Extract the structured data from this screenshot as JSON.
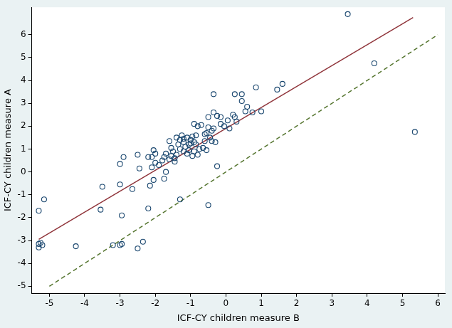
{
  "chart_data": {
    "type": "scatter",
    "x_label": "ICF-CY children measure B",
    "y_label": "ICF-CY children measure A",
    "xlim": [
      -5.5,
      6.2
    ],
    "ylim": [
      -5.3,
      7.2
    ],
    "xticks": [
      -5,
      -4,
      -3,
      -2,
      -1,
      0,
      1,
      2,
      3,
      4,
      5,
      6
    ],
    "yticks": [
      -5,
      -4,
      -3,
      -2,
      -1,
      0,
      1,
      2,
      3,
      4,
      5,
      6
    ],
    "grid": false,
    "series": [
      {
        "type": "scatter",
        "marker": "circle",
        "color": "#1a476f",
        "x": [
          3.45,
          4.2,
          5.35,
          1.6,
          1.45,
          0.85,
          1.0,
          0.75,
          0.45,
          0.45,
          0.25,
          0.2,
          0.25,
          0.05,
          -0.05,
          -0.15,
          0.55,
          0.6,
          0.3,
          -0.35,
          -0.35,
          -0.25,
          -0.15,
          -0.5,
          -0.5,
          -0.4,
          -0.55,
          -0.6,
          -0.7,
          -0.8,
          -0.3,
          -0.4,
          -0.55,
          -0.25,
          -0.5,
          -1.3,
          -0.9,
          -0.85,
          -0.95,
          -1.0,
          -1.1,
          -1.05,
          -1.15,
          -1.2,
          -1.25,
          -1.3,
          -1.4,
          -1.35,
          -1.3,
          -1.1,
          -1.2,
          -1.05,
          -0.9,
          -0.95,
          -1.5,
          -1.55,
          -1.6,
          -1.7,
          -1.75,
          -1.6,
          -1.8,
          -1.9,
          -1.7,
          -1.75,
          -2.0,
          -2.05,
          -2.1,
          -2.0,
          -2.1,
          -2.05,
          -2.15,
          -2.2,
          -2.2,
          -2.5,
          -2.45,
          -2.65,
          -2.9,
          -3.0,
          -3.0,
          -2.95,
          -3.5,
          -3.55,
          -2.35,
          -2.5,
          -2.95,
          -3.0,
          -3.2,
          -4.25,
          -5.15,
          -5.3,
          -5.25,
          -5.3,
          -5.2,
          -5.3,
          -1.55,
          -1.45,
          -0.6,
          -0.75,
          -0.85,
          -0.65,
          -0.45,
          -0.9,
          -0.35,
          0.1,
          -1.2,
          -1.0,
          -0.8,
          -1.45,
          -1.4
        ],
        "y": [
          6.9,
          4.75,
          1.75,
          3.85,
          3.6,
          3.7,
          2.65,
          2.6,
          3.4,
          3.1,
          3.4,
          2.5,
          2.4,
          2.25,
          2.0,
          2.1,
          2.65,
          2.85,
          2.2,
          3.4,
          2.6,
          2.45,
          2.4,
          2.4,
          1.95,
          1.8,
          1.7,
          1.65,
          2.05,
          2.0,
          1.3,
          1.35,
          0.95,
          0.25,
          -1.45,
          -1.2,
          2.1,
          1.6,
          1.55,
          1.4,
          1.5,
          1.2,
          1.1,
          1.3,
          1.6,
          1.4,
          1.5,
          1.2,
          1.0,
          0.8,
          0.9,
          0.95,
          0.9,
          0.7,
          0.9,
          0.7,
          0.55,
          0.8,
          0.65,
          1.35,
          0.5,
          0.3,
          0.0,
          -0.3,
          0.8,
          0.95,
          0.65,
          0.4,
          0.2,
          -0.35,
          -0.6,
          -1.6,
          0.65,
          0.75,
          0.15,
          -0.75,
          0.65,
          0.35,
          -0.55,
          -1.9,
          -0.65,
          -1.65,
          -3.05,
          -3.35,
          -3.15,
          -3.2,
          -3.2,
          -3.25,
          -1.2,
          -1.7,
          -3.1,
          -3.3,
          -3.2,
          -3.15,
          1.05,
          0.6,
          1.35,
          1.0,
          1.2,
          1.05,
          1.5,
          1.3,
          1.9,
          1.9,
          1.45,
          1.25,
          0.75,
          0.45,
          0.75
        ]
      },
      {
        "type": "line",
        "line_style": "solid",
        "color": "#90353b",
        "x": [
          -5.3,
          5.3
        ],
        "y": [
          -2.95,
          6.75
        ]
      },
      {
        "type": "line",
        "line_style": "dashed",
        "color": "#55752f",
        "x": [
          -5,
          6
        ],
        "y": [
          -5,
          6
        ]
      }
    ]
  }
}
